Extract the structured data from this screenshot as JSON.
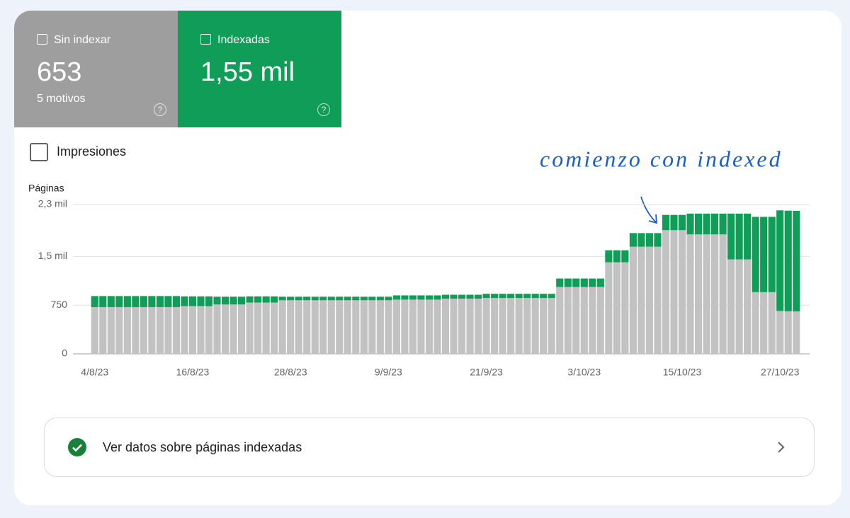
{
  "tabs": [
    {
      "label": "Sin indexar",
      "value": "653",
      "sub": "5 motivos"
    },
    {
      "label": "Indexadas",
      "value": "1,55 mil"
    }
  ],
  "toggle": "Impresiones",
  "link": "Ver datos sobre páginas indexadas",
  "chart_data": {
    "type": "bar",
    "stacked": true,
    "ylabel": "Páginas",
    "annotation": "comienzo con indexed",
    "ylim": [
      0,
      2300
    ],
    "yticks": [
      0,
      750,
      {
        "value": 1500,
        "label": "1,5 mil"
      },
      {
        "value": 2300,
        "label": "2,3 mil"
      }
    ],
    "grid": true,
    "categories": [
      "4/8/23",
      null,
      null,
      null,
      null,
      null,
      null,
      null,
      null,
      null,
      null,
      null,
      "16/8/23",
      null,
      null,
      null,
      null,
      null,
      null,
      null,
      null,
      null,
      null,
      null,
      "28/8/23",
      null,
      null,
      null,
      null,
      null,
      null,
      null,
      null,
      null,
      null,
      null,
      "9/9/23",
      null,
      null,
      null,
      null,
      null,
      null,
      null,
      null,
      null,
      null,
      null,
      "21/9/23",
      null,
      null,
      null,
      null,
      null,
      null,
      null,
      null,
      null,
      null,
      null,
      "3/10/23",
      null,
      null,
      null,
      null,
      null,
      null,
      null,
      null,
      null,
      null,
      null,
      "15/10/23",
      null,
      null,
      null,
      null,
      null,
      null,
      null,
      null,
      null,
      null,
      null,
      "27/10/23",
      null,
      null
    ],
    "series": [
      {
        "name": "Sin indexar",
        "color": "#c2c2c2",
        "values": [
          720,
          720,
          720,
          720,
          720,
          720,
          720,
          720,
          720,
          720,
          720,
          735,
          735,
          735,
          735,
          760,
          760,
          760,
          760,
          790,
          790,
          790,
          790,
          825,
          825,
          825,
          825,
          825,
          825,
          825,
          825,
          825,
          825,
          825,
          825,
          825,
          825,
          835,
          835,
          835,
          835,
          835,
          835,
          850,
          850,
          850,
          850,
          850,
          860,
          860,
          860,
          860,
          860,
          860,
          860,
          860,
          860,
          1030,
          1030,
          1030,
          1030,
          1030,
          1030,
          1410,
          1410,
          1410,
          1650,
          1650,
          1650,
          1650,
          1905,
          1905,
          1905,
          1840,
          1840,
          1840,
          1840,
          1840,
          1455,
          1455,
          1455,
          950,
          950,
          950,
          660,
          655,
          653
        ]
      },
      {
        "name": "Indexadas",
        "color": "#0f9d58",
        "values": [
          170,
          170,
          170,
          170,
          170,
          170,
          170,
          170,
          170,
          170,
          170,
          150,
          150,
          150,
          150,
          120,
          120,
          120,
          120,
          95,
          95,
          95,
          95,
          55,
          55,
          55,
          55,
          55,
          55,
          55,
          55,
          55,
          55,
          55,
          55,
          55,
          55,
          65,
          65,
          65,
          65,
          65,
          65,
          60,
          60,
          60,
          60,
          60,
          65,
          65,
          65,
          65,
          65,
          65,
          65,
          65,
          65,
          130,
          130,
          130,
          130,
          130,
          130,
          185,
          185,
          185,
          210,
          210,
          210,
          210,
          235,
          235,
          235,
          320,
          320,
          320,
          320,
          320,
          705,
          705,
          705,
          1160,
          1160,
          1160,
          1550,
          1550,
          1550
        ]
      }
    ]
  }
}
